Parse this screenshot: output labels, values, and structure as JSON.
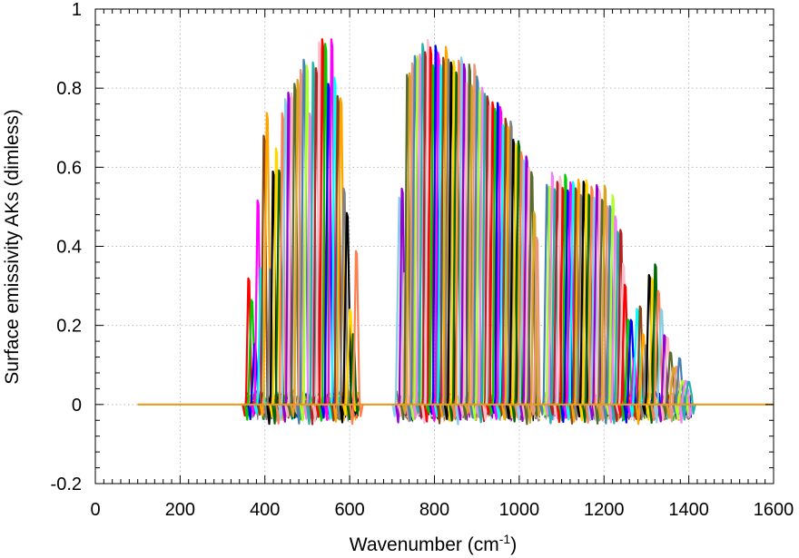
{
  "chart_data": {
    "type": "line",
    "title": "",
    "xlabel": "Wavenumber (cm",
    "xlabel_superscript": "-1",
    "xlabel_suffix": ")",
    "ylabel": "Surface emissivity AKs (dimless)",
    "xlim": [
      0,
      1600
    ],
    "ylim": [
      -0.2,
      1.0
    ],
    "grid": true,
    "legend": "none",
    "x_ticks": [
      0,
      200,
      400,
      600,
      800,
      1000,
      1200,
      1400,
      1600
    ],
    "x_tick_labels": [
      "0",
      "200",
      "400",
      "600",
      "800",
      "1000",
      "1200",
      "1400",
      "1600"
    ],
    "y_ticks": [
      -0.2,
      0,
      0.2,
      0.4,
      0.6,
      0.8,
      1.0
    ],
    "y_tick_labels": [
      "-0.2",
      "0",
      "0.2",
      "0.4",
      "0.6",
      "0.8",
      "1"
    ],
    "baseline": {
      "x": [
        100,
        1600
      ],
      "y": 0,
      "color": "#e69a1e"
    },
    "peak_bands": [
      {
        "x_start": 362,
        "x_end": 616,
        "count": 36
      },
      {
        "x_start": 718,
        "x_end": 1042,
        "count": 54
      },
      {
        "x_start": 1066,
        "x_end": 1246,
        "count": 30
      },
      {
        "x_start": 1250,
        "x_end": 1400,
        "count": 22
      }
    ],
    "series": [
      {
        "x": 365,
        "y": 0.34
      },
      {
        "x": 368,
        "y": 0.27
      },
      {
        "x": 372,
        "y": 0.2
      },
      {
        "x": 376,
        "y": 0.16
      },
      {
        "x": 384,
        "y": 0.54
      },
      {
        "x": 392,
        "y": 0.36
      },
      {
        "x": 400,
        "y": 0.71
      },
      {
        "x": 406,
        "y": 0.79
      },
      {
        "x": 412,
        "y": 0.36
      },
      {
        "x": 420,
        "y": 0.6
      },
      {
        "x": 428,
        "y": 0.68
      },
      {
        "x": 436,
        "y": 0.6
      },
      {
        "x": 444,
        "y": 0.75
      },
      {
        "x": 452,
        "y": 0.83
      },
      {
        "x": 460,
        "y": 0.79
      },
      {
        "x": 468,
        "y": 0.85
      },
      {
        "x": 476,
        "y": 0.86
      },
      {
        "x": 484,
        "y": 0.85
      },
      {
        "x": 492,
        "y": 0.93
      },
      {
        "x": 500,
        "y": 0.87
      },
      {
        "x": 508,
        "y": 0.79
      },
      {
        "x": 516,
        "y": 0.9
      },
      {
        "x": 524,
        "y": 0.87
      },
      {
        "x": 532,
        "y": 0.95
      },
      {
        "x": 540,
        "y": 0.93
      },
      {
        "x": 548,
        "y": 0.86
      },
      {
        "x": 556,
        "y": 0.95
      },
      {
        "x": 564,
        "y": 0.85
      },
      {
        "x": 572,
        "y": 0.82
      },
      {
        "x": 580,
        "y": 0.8
      },
      {
        "x": 588,
        "y": 0.57
      },
      {
        "x": 596,
        "y": 0.5
      },
      {
        "x": 604,
        "y": 0.24
      },
      {
        "x": 612,
        "y": 0.18
      },
      {
        "x": 618,
        "y": 0.39
      },
      {
        "x": 622,
        "y": 0.41
      },
      {
        "x": 722,
        "y": 0.55
      },
      {
        "x": 728,
        "y": 0.35
      },
      {
        "x": 740,
        "y": 0.85
      },
      {
        "x": 748,
        "y": 0.92
      },
      {
        "x": 756,
        "y": 0.93
      },
      {
        "x": 764,
        "y": 0.93
      },
      {
        "x": 772,
        "y": 0.93
      },
      {
        "x": 780,
        "y": 0.92
      },
      {
        "x": 788,
        "y": 0.93
      },
      {
        "x": 796,
        "y": 0.92
      },
      {
        "x": 804,
        "y": 0.92
      },
      {
        "x": 812,
        "y": 0.91
      },
      {
        "x": 820,
        "y": 0.92
      },
      {
        "x": 828,
        "y": 0.91
      },
      {
        "x": 836,
        "y": 0.91
      },
      {
        "x": 844,
        "y": 0.9
      },
      {
        "x": 852,
        "y": 0.9
      },
      {
        "x": 860,
        "y": 0.89
      },
      {
        "x": 868,
        "y": 0.88
      },
      {
        "x": 876,
        "y": 0.87
      },
      {
        "x": 884,
        "y": 0.87
      },
      {
        "x": 892,
        "y": 0.86
      },
      {
        "x": 900,
        "y": 0.85
      },
      {
        "x": 908,
        "y": 0.84
      },
      {
        "x": 916,
        "y": 0.83
      },
      {
        "x": 924,
        "y": 0.82
      },
      {
        "x": 932,
        "y": 0.81
      },
      {
        "x": 940,
        "y": 0.8
      },
      {
        "x": 948,
        "y": 0.79
      },
      {
        "x": 956,
        "y": 0.78
      },
      {
        "x": 964,
        "y": 0.76
      },
      {
        "x": 972,
        "y": 0.75
      },
      {
        "x": 980,
        "y": 0.73
      },
      {
        "x": 988,
        "y": 0.72
      },
      {
        "x": 996,
        "y": 0.7
      },
      {
        "x": 1004,
        "y": 0.68
      },
      {
        "x": 1012,
        "y": 0.66
      },
      {
        "x": 1020,
        "y": 0.63
      },
      {
        "x": 1028,
        "y": 0.6
      },
      {
        "x": 1036,
        "y": 0.5
      },
      {
        "x": 1040,
        "y": 0.44
      },
      {
        "x": 1046,
        "y": 0.38
      },
      {
        "x": 1060,
        "y": 0.27
      },
      {
        "x": 1068,
        "y": 0.59
      },
      {
        "x": 1076,
        "y": 0.59
      },
      {
        "x": 1084,
        "y": 0.58
      },
      {
        "x": 1092,
        "y": 0.59
      },
      {
        "x": 1100,
        "y": 0.58
      },
      {
        "x": 1108,
        "y": 0.59
      },
      {
        "x": 1116,
        "y": 0.58
      },
      {
        "x": 1124,
        "y": 0.58
      },
      {
        "x": 1132,
        "y": 0.57
      },
      {
        "x": 1140,
        "y": 0.58
      },
      {
        "x": 1148,
        "y": 0.56
      },
      {
        "x": 1156,
        "y": 0.58
      },
      {
        "x": 1164,
        "y": 0.56
      },
      {
        "x": 1172,
        "y": 0.57
      },
      {
        "x": 1180,
        "y": 0.56
      },
      {
        "x": 1188,
        "y": 0.56
      },
      {
        "x": 1196,
        "y": 0.55
      },
      {
        "x": 1204,
        "y": 0.57
      },
      {
        "x": 1212,
        "y": 0.52
      },
      {
        "x": 1220,
        "y": 0.54
      },
      {
        "x": 1228,
        "y": 0.51
      },
      {
        "x": 1236,
        "y": 0.45
      },
      {
        "x": 1244,
        "y": 0.38
      },
      {
        "x": 1252,
        "y": 0.32
      },
      {
        "x": 1260,
        "y": 0.22
      },
      {
        "x": 1270,
        "y": 0.12
      },
      {
        "x": 1282,
        "y": 0.25
      },
      {
        "x": 1292,
        "y": 0.19
      },
      {
        "x": 1302,
        "y": 0.15
      },
      {
        "x": 1312,
        "y": 0.34
      },
      {
        "x": 1322,
        "y": 0.36
      },
      {
        "x": 1330,
        "y": 0.3
      },
      {
        "x": 1338,
        "y": 0.25
      },
      {
        "x": 1346,
        "y": 0.18
      },
      {
        "x": 1356,
        "y": 0.14
      },
      {
        "x": 1366,
        "y": 0.1
      },
      {
        "x": 1378,
        "y": 0.12
      },
      {
        "x": 1392,
        "y": 0.06
      },
      {
        "x": 1408,
        "y": 0.02
      }
    ],
    "palette": [
      "#ff0000",
      "#00cc00",
      "#0000ff",
      "#ff00ff",
      "#00ffff",
      "#8b4513",
      "#ffa500",
      "#808080",
      "#000000",
      "#ffd700",
      "#006400",
      "#ff7f50",
      "#87ceeb",
      "#9400d3",
      "#ffb6c1",
      "#556b2f",
      "#daa520",
      "#e9967a",
      "#4682b4",
      "#adff2f",
      "#ee82ee",
      "#20b2aa",
      "#b22222",
      "#ffc0cb"
    ]
  }
}
